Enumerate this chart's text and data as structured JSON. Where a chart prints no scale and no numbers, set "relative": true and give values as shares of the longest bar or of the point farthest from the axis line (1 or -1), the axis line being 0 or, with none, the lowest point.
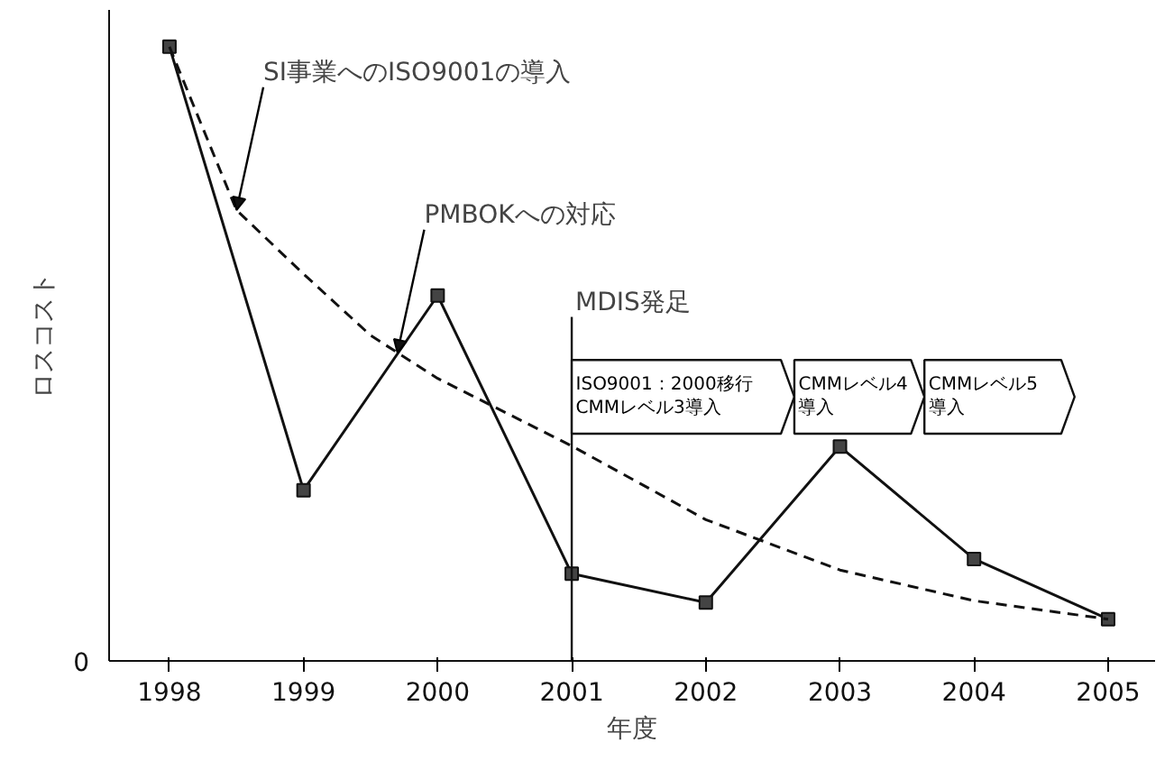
{
  "chart_data": {
    "type": "line",
    "xlabel": "年度",
    "ylabel": "ロスコスト",
    "relative": true,
    "x": [
      1998,
      1999,
      2000,
      2001,
      2002,
      2003,
      2004,
      2005
    ],
    "xlim": [
      1997.55,
      2005.35
    ],
    "xticks": [
      1998,
      1999,
      2000,
      2001,
      2002,
      2003,
      2004,
      2005
    ],
    "series": [
      {
        "color": "#111111",
        "values": [
          1.0,
          0.278,
          0.595,
          0.142,
          0.095,
          0.349,
          0.166,
          0.068
        ],
        "marker": "square",
        "line_style": "solid"
      },
      {
        "color": "#111111",
        "x": [
          1998,
          1998.5,
          1999,
          1999.5,
          2000,
          2001,
          2002,
          2003,
          2004,
          2005
        ],
        "values": [
          1.0,
          0.734,
          0.63,
          0.53,
          0.46,
          0.35,
          0.23,
          0.148,
          0.098,
          0.068
        ],
        "marker": "none",
        "line_style": "dashed"
      }
    ],
    "ref_lines": [
      {
        "axis": "x",
        "value": 2001,
        "label": "MDIS発足"
      }
    ],
    "bands": [
      {
        "axis": "x",
        "from": 2001,
        "to": 2002.66,
        "label": "ISO9001：2000移行\nCMMレベル3導入",
        "color": "#ffffff"
      },
      {
        "axis": "x",
        "from": 2002.66,
        "to": 2003.63,
        "label": "CMMレベル4\n導入",
        "color": "#ffffff"
      },
      {
        "axis": "x",
        "from": 2003.63,
        "to": 2004.75,
        "label": "CMMレベル5\n導入",
        "color": "#ffffff"
      }
    ],
    "annotations": [
      {
        "text": "SI事業へのISO9001の導入",
        "x": 1998.5,
        "y": 0.734
      },
      {
        "text": "PMBOKへの対応",
        "x": 1999.7,
        "y": 0.502
      },
      "0"
    ],
    "grid": false
  }
}
